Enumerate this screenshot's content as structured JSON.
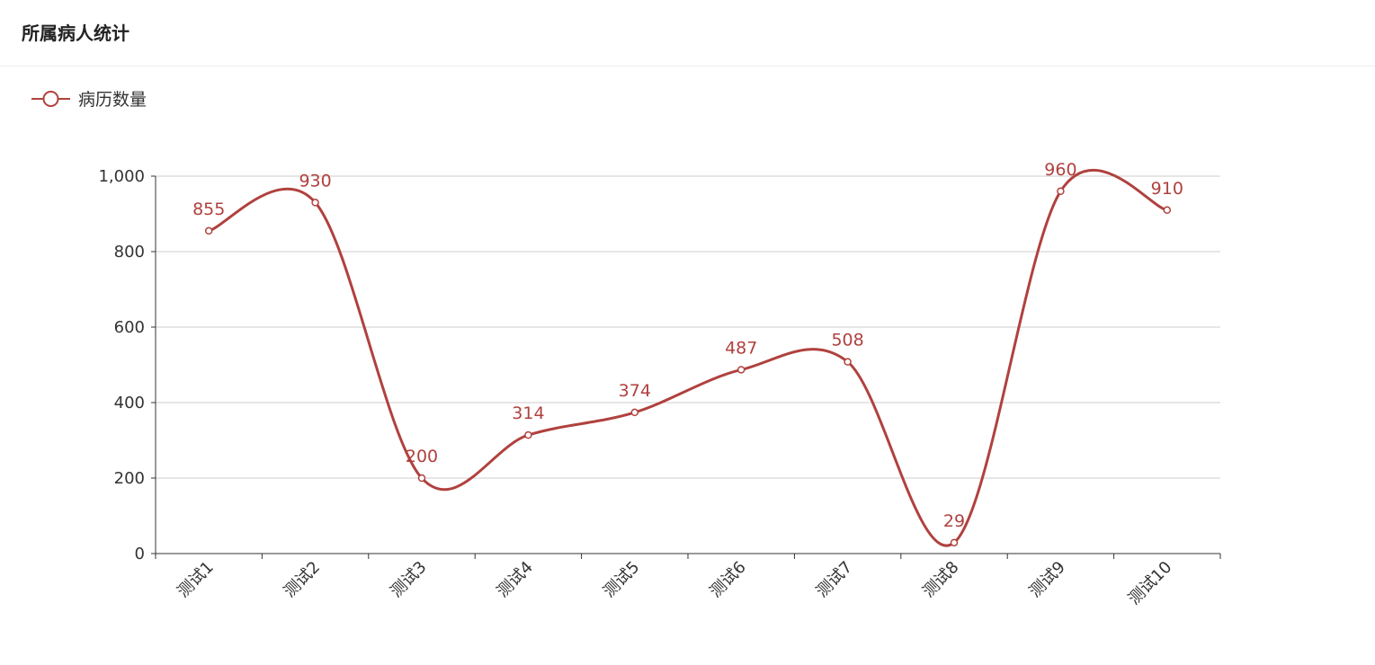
{
  "chart_data": {
    "type": "line",
    "title": "所属病人统计",
    "categories": [
      "测试1",
      "测试2",
      "测试3",
      "测试4",
      "测试5",
      "测试6",
      "测试7",
      "测试8",
      "测试9",
      "测试10"
    ],
    "series": [
      {
        "name": "病历数量",
        "color": "#b0413e",
        "values": [
          855,
          930,
          200,
          314,
          374,
          487,
          508,
          29,
          960,
          910
        ]
      }
    ],
    "ylim": [
      0,
      1000
    ],
    "yticks": [
      0,
      200,
      400,
      600,
      800,
      {
        "value": 1000,
        "label": "1,000"
      }
    ],
    "grid": true,
    "smooth": true,
    "legend": "top-left"
  }
}
